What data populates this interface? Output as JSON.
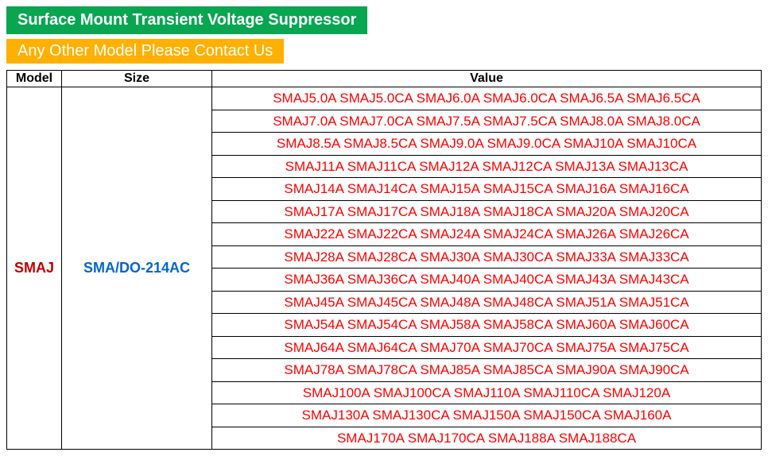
{
  "banner1": "Surface Mount Transient Voltage Suppressor",
  "banner2": "Any Other Model Please Contact Us",
  "table": {
    "headers": {
      "model": "Model",
      "size": "Size",
      "value": "Value"
    },
    "model": "SMAJ",
    "size": "SMA/DO-214AC",
    "value_rows": [
      "SMAJ5.0A SMAJ5.0CA SMAJ6.0A SMAJ6.0CA SMAJ6.5A SMAJ6.5CA",
      "SMAJ7.0A SMAJ7.0CA SMAJ7.5A SMAJ7.5CA SMAJ8.0A SMAJ8.0CA",
      "SMAJ8.5A SMAJ8.5CA SMAJ9.0A SMAJ9.0CA SMAJ10A SMAJ10CA",
      "SMAJ11A SMAJ11CA SMAJ12A SMAJ12CA SMAJ13A SMAJ13CA",
      "SMAJ14A SMAJ14CA SMAJ15A SMAJ15CA SMAJ16A SMAJ16CA",
      "SMAJ17A SMAJ17CA SMAJ18A SMAJ18CA SMAJ20A SMAJ20CA",
      "SMAJ22A SMAJ22CA SMAJ24A SMAJ24CA SMAJ26A SMAJ26CA",
      "SMAJ28A SMAJ28CA SMAJ30A SMAJ30CA SMAJ33A SMAJ33CA",
      "SMAJ36A SMAJ36CA SMAJ40A SMAJ40CA SMAJ43A SMAJ43CA",
      "SMAJ45A SMAJ45CA SMAJ48A SMAJ48CA SMAJ51A SMAJ51CA",
      "SMAJ54A SMAJ54CA SMAJ58A SMAJ58CA SMAJ60A SMAJ60CA",
      "SMAJ64A SMAJ64CA SMAJ70A SMAJ70CA SMAJ75A SMAJ75CA",
      "SMAJ78A SMAJ78CA SMAJ85A SMAJ85CA SMAJ90A SMAJ90CA",
      "SMAJ100A SMAJ100CA SMAJ110A SMAJ110CA SMAJ120A",
      "SMAJ130A SMAJ130CA SMAJ150A SMAJ150CA SMAJ160A",
      "SMAJ170A SMAJ170CA SMAJ188A SMAJ188CA"
    ]
  },
  "colors": {
    "banner1_bg": "#08a651",
    "banner2_bg": "#ffb000",
    "model_text": "#c00000",
    "size_text": "#0066cc",
    "value_text": "#ff0000",
    "border": "#000000"
  }
}
